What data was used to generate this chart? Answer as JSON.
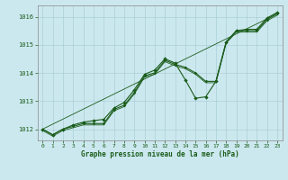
{
  "title": "Graphe pression niveau de la mer (hPa)",
  "background_color": "#cce8ef",
  "grid_color": "#aacfd8",
  "line_color": "#1a5c1a",
  "xlim": [
    -0.5,
    23.5
  ],
  "ylim": [
    1011.6,
    1016.4
  ],
  "yticks": [
    1012,
    1013,
    1014,
    1015,
    1016
  ],
  "xticks": [
    0,
    1,
    2,
    3,
    4,
    5,
    6,
    7,
    8,
    9,
    10,
    11,
    12,
    13,
    14,
    15,
    16,
    17,
    18,
    19,
    20,
    21,
    22,
    23
  ],
  "series_main": {
    "x": [
      0,
      1,
      2,
      3,
      4,
      5,
      6,
      7,
      8,
      9,
      10,
      11,
      12,
      13,
      14,
      15,
      16,
      17,
      18,
      19,
      20,
      21,
      22,
      23
    ],
    "y": [
      1012.0,
      1011.8,
      1012.0,
      1012.1,
      1012.2,
      1012.2,
      1012.2,
      1012.7,
      1012.85,
      1013.3,
      1013.9,
      1014.0,
      1014.45,
      1014.3,
      1014.2,
      1014.0,
      1013.7,
      1013.7,
      1015.1,
      1015.5,
      1015.5,
      1015.5,
      1015.9,
      1016.1
    ]
  },
  "series_thin": {
    "x": [
      0,
      1,
      2,
      3,
      4,
      5,
      6,
      7,
      8,
      9,
      10,
      11,
      12,
      13,
      14,
      15,
      16,
      17,
      18,
      19,
      20,
      21,
      22,
      23
    ],
    "y": [
      1012.0,
      1011.8,
      1012.0,
      1012.1,
      1012.2,
      1012.2,
      1012.2,
      1012.7,
      1012.85,
      1013.3,
      1013.9,
      1014.0,
      1014.45,
      1014.3,
      1014.2,
      1014.0,
      1013.7,
      1013.7,
      1015.1,
      1015.5,
      1015.5,
      1015.5,
      1015.9,
      1016.1
    ]
  },
  "series_sparse": {
    "x": [
      0,
      1,
      2,
      3,
      4,
      5,
      6,
      7,
      8,
      9,
      10,
      11,
      12,
      13,
      14,
      15,
      16,
      17,
      18,
      19,
      20,
      21,
      22,
      23
    ],
    "y": [
      1012.0,
      1011.8,
      1012.0,
      1012.15,
      1012.25,
      1012.3,
      1012.35,
      1012.75,
      1012.95,
      1013.4,
      1013.95,
      1014.1,
      1014.5,
      1014.35,
      1013.75,
      1013.1,
      1013.15,
      1013.7,
      1015.1,
      1015.5,
      1015.55,
      1015.55,
      1015.95,
      1016.15
    ]
  },
  "series_diagonal": {
    "x": [
      0,
      23
    ],
    "y": [
      1012.0,
      1016.1
    ]
  }
}
